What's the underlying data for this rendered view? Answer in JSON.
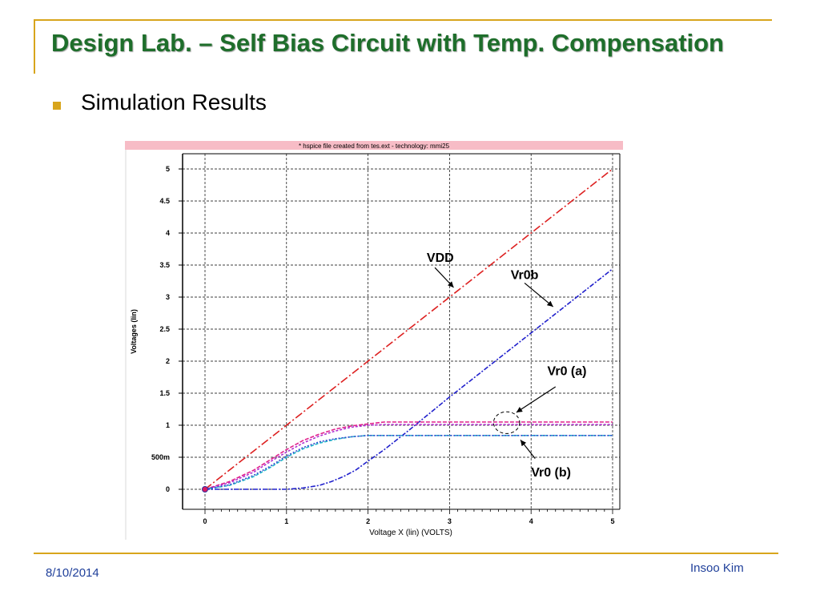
{
  "slide": {
    "title": "Design Lab. – Self Bias Circuit with Temp. Compensation",
    "bullet": "Simulation Results",
    "footer_date": "8/10/2014",
    "footer_author": "Insoo Kim",
    "colors": {
      "title": "#1e6e2b",
      "accent": "#d8a51c",
      "footer_text": "#1f3f9a"
    }
  },
  "chart_data": {
    "type": "line",
    "title": "* hspice file created from tes.ext - technology: mmi25",
    "xlabel": "Voltage X (lin) (VOLTS)",
    "ylabel": "Voltages (lin)",
    "xlim": [
      0,
      5
    ],
    "ylim": [
      0,
      5
    ],
    "x_ticks": [
      "0",
      "1",
      "2",
      "3",
      "4",
      "5"
    ],
    "y_ticks": [
      {
        "value": 0,
        "label": "0"
      },
      {
        "value": 0.5,
        "label": "500m"
      },
      {
        "value": 1,
        "label": "1"
      },
      {
        "value": 1.5,
        "label": "1.5"
      },
      {
        "value": 2,
        "label": "2"
      },
      {
        "value": 2.5,
        "label": "2.5"
      },
      {
        "value": 3,
        "label": "3"
      },
      {
        "value": 3.5,
        "label": "3.5"
      },
      {
        "value": 4,
        "label": "4"
      },
      {
        "value": 4.5,
        "label": "4.5"
      },
      {
        "value": 5,
        "label": "5"
      }
    ],
    "grid": true,
    "series": [
      {
        "name": "VDD",
        "color": "#dd2020",
        "dash": "10,3,2,3",
        "x": [
          0,
          1,
          2,
          3,
          4,
          5
        ],
        "y": [
          0,
          1,
          2,
          3,
          4,
          5
        ]
      },
      {
        "name": "Vr0b",
        "color": "#2020cc",
        "dash": "6,2,2,2",
        "x": [
          0,
          0.5,
          1,
          1.2,
          1.4,
          1.55,
          1.7,
          1.85,
          2,
          2.2,
          2.5,
          3,
          3.5,
          4,
          4.5,
          5
        ],
        "y": [
          0,
          0,
          0,
          0.02,
          0.06,
          0.12,
          0.2,
          0.3,
          0.44,
          0.62,
          0.92,
          1.44,
          1.94,
          2.44,
          2.94,
          3.44
        ]
      },
      {
        "name": "",
        "color": "#e0208c",
        "dash": "5,2",
        "x": [
          0,
          0.3,
          0.6,
          0.8,
          1,
          1.2,
          1.4,
          1.6,
          1.8,
          2,
          2.2,
          2.5,
          3,
          4,
          5
        ],
        "y": [
          0,
          0.12,
          0.3,
          0.46,
          0.62,
          0.76,
          0.86,
          0.94,
          0.99,
          1.02,
          1.05,
          1.05,
          1.05,
          1.05,
          1.05
        ]
      },
      {
        "name": "",
        "color": "#b030d0",
        "dash": "3,2",
        "x": [
          0,
          0.3,
          0.6,
          0.8,
          1,
          1.2,
          1.4,
          1.6,
          1.8,
          2,
          2.2,
          2.5,
          3,
          4,
          5
        ],
        "y": [
          0,
          0.1,
          0.27,
          0.43,
          0.58,
          0.72,
          0.83,
          0.91,
          0.97,
          1.0,
          1.01,
          1.01,
          1.01,
          1.01,
          1.01
        ]
      },
      {
        "name": "",
        "color": "#20b8c8",
        "dash": "4,2",
        "x": [
          0,
          0.3,
          0.6,
          0.8,
          1,
          1.2,
          1.4,
          1.6,
          1.8,
          2,
          2.5,
          3,
          4,
          5
        ],
        "y": [
          0,
          0.06,
          0.2,
          0.34,
          0.5,
          0.63,
          0.72,
          0.78,
          0.82,
          0.84,
          0.84,
          0.84,
          0.84,
          0.84
        ]
      },
      {
        "name": "",
        "color": "#3a4ad0",
        "dash": "2,2",
        "x": [
          0,
          0.3,
          0.6,
          0.8,
          1,
          1.2,
          1.4,
          1.6,
          1.8,
          2,
          2.5,
          3,
          4,
          5
        ],
        "y": [
          0,
          0.07,
          0.22,
          0.36,
          0.52,
          0.65,
          0.74,
          0.79,
          0.82,
          0.84,
          0.84,
          0.84,
          0.84,
          0.84
        ]
      }
    ],
    "annotations": [
      {
        "text": "VDD",
        "label_at": [
          2.72,
          3.55
        ],
        "arrow_from": [
          2.82,
          3.46
        ],
        "arrow_to": [
          3.05,
          3.15
        ]
      },
      {
        "text": "Vr0b",
        "label_at": [
          3.75,
          3.28
        ],
        "arrow_from": [
          3.92,
          3.22
        ],
        "arrow_to": [
          4.27,
          2.85
        ]
      },
      {
        "text": "Vr0 (a)",
        "label_at": [
          4.2,
          1.78
        ],
        "arrow_from": [
          4.3,
          1.6
        ],
        "arrow_to": [
          3.82,
          1.2
        ]
      },
      {
        "text": "Vr0 (b)",
        "label_at": [
          4.0,
          0.2
        ],
        "arrow_from": [
          4.05,
          0.48
        ],
        "arrow_to": [
          3.87,
          0.77
        ]
      }
    ],
    "highlight_circle": {
      "cx": 3.7,
      "cy": 1.04,
      "rx": 0.16,
      "ry": 0.17
    }
  }
}
